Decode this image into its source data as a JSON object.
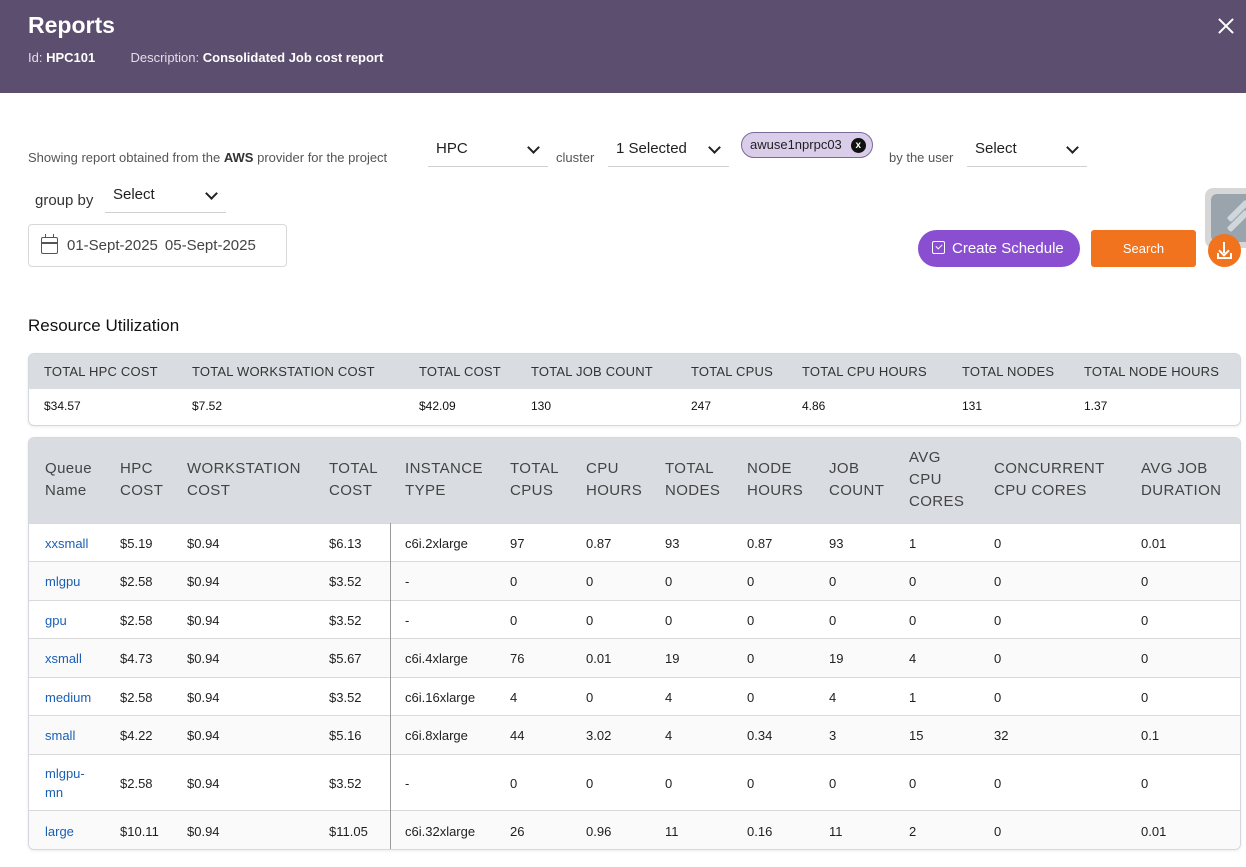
{
  "header": {
    "title": "Reports",
    "id_label": "Id:",
    "id_value": "HPC101",
    "description_label": "Description:",
    "description_value": "Consolidated Job cost report"
  },
  "filters": {
    "prefix": "Showing report obtained from the",
    "provider": "AWS",
    "provider_suffix": "provider for the project",
    "project_value": "HPC",
    "cluster_label": "cluster",
    "cluster_value": "1 Selected",
    "cluster_chip": "awuse1nprpc03",
    "chip_remove_glyph": "x",
    "user_label": "by the user",
    "user_value": "Select",
    "group_by_label": "group by",
    "group_by_value": "Select"
  },
  "date_range": {
    "start": "01-Sept-2025",
    "end": "05-Sept-2025"
  },
  "actions": {
    "create_schedule": "Create Schedule",
    "search": "Search"
  },
  "section_title": "Resource Utilization",
  "summary": {
    "headers": [
      "TOTAL HPC COST",
      "TOTAL WORKSTATION COST",
      "TOTAL COST",
      "TOTAL JOB COUNT",
      "TOTAL CPUS",
      "TOTAL CPU HOURS",
      "TOTAL NODES",
      "TOTAL NODE HOURS"
    ],
    "values": [
      "$34.57",
      "$7.52",
      "$42.09",
      "130",
      "247",
      "4.86",
      "131",
      "1.37"
    ]
  },
  "table": {
    "headers": [
      [
        "Queue",
        "Name"
      ],
      [
        "HPC",
        "COST"
      ],
      [
        "WORKSTATION",
        "COST"
      ],
      [
        "TOTAL",
        "COST"
      ],
      [
        "INSTANCE",
        "TYPE"
      ],
      [
        "TOTAL",
        "CPUS"
      ],
      [
        "CPU",
        "HOURS"
      ],
      [
        "TOTAL",
        "NODES"
      ],
      [
        "NODE",
        "HOURS"
      ],
      [
        "JOB",
        "COUNT"
      ],
      [
        "AVG",
        "CPU",
        "CORES"
      ],
      [
        "CONCURRENT",
        "CPU CORES"
      ],
      [
        "AVG JOB",
        "DURATION"
      ]
    ],
    "rows": [
      [
        "xxsmall",
        "$5.19",
        "$0.94",
        "$6.13",
        "c6i.2xlarge",
        "97",
        "0.87",
        "93",
        "0.87",
        "93",
        "1",
        "0",
        "0.01"
      ],
      [
        "mlgpu",
        "$2.58",
        "$0.94",
        "$3.52",
        "-",
        "0",
        "0",
        "0",
        "0",
        "0",
        "0",
        "0",
        "0"
      ],
      [
        "gpu",
        "$2.58",
        "$0.94",
        "$3.52",
        "-",
        "0",
        "0",
        "0",
        "0",
        "0",
        "0",
        "0",
        "0"
      ],
      [
        "xsmall",
        "$4.73",
        "$0.94",
        "$5.67",
        "c6i.4xlarge",
        "76",
        "0.01",
        "19",
        "0",
        "19",
        "4",
        "0",
        "0"
      ],
      [
        "medium",
        "$2.58",
        "$0.94",
        "$3.52",
        "c6i.16xlarge",
        "4",
        "0",
        "4",
        "0",
        "4",
        "1",
        "0",
        "0"
      ],
      [
        "small",
        "$4.22",
        "$0.94",
        "$5.16",
        "c6i.8xlarge",
        "44",
        "3.02",
        "4",
        "0.34",
        "3",
        "15",
        "32",
        "0.1"
      ],
      [
        "mlgpu-\nmn",
        "$2.58",
        "$0.94",
        "$3.52",
        "-",
        "0",
        "0",
        "0",
        "0",
        "0",
        "0",
        "0",
        "0"
      ],
      [
        "large",
        "$10.11",
        "$0.94",
        "$11.05",
        "c6i.32xlarge",
        "26",
        "0.96",
        "11",
        "0.16",
        "11",
        "2",
        "0",
        "0.01"
      ]
    ]
  },
  "colors": {
    "header_bg": "#5c4e6e",
    "schedule_button": "#8a4fd1",
    "search_button": "#f2731d",
    "chip_bg": "#d9cdea",
    "table_header_bg": "#d9dce1",
    "link": "#1a5fb4"
  },
  "icons": [
    "close-icon",
    "chevron-down-icon",
    "chip-remove-icon",
    "calendar-icon",
    "schedule-icon",
    "download-icon",
    "widget-icon"
  ]
}
